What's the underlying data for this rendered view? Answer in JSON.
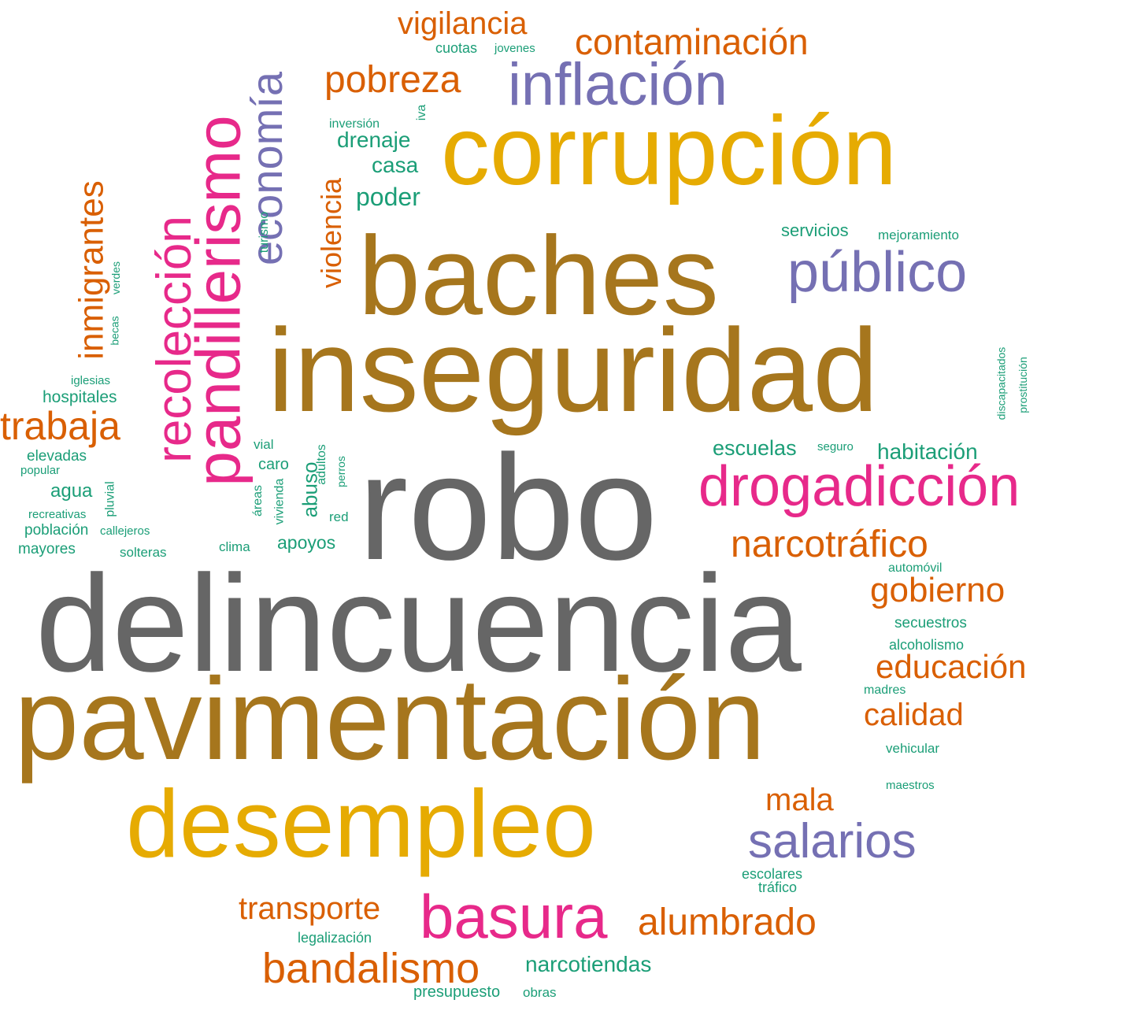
{
  "palette": {
    "gray": "#666666",
    "brown": "#A6761D",
    "gold": "#E6AB02",
    "purple": "#7570B3",
    "magenta": "#E7298A",
    "orange": "#D95F02",
    "green": "#1B9E77"
  },
  "words": [
    {
      "text": "robo",
      "color": "gray"
    },
    {
      "text": "delincuencia",
      "color": "gray"
    },
    {
      "text": "inseguridad",
      "color": "brown"
    },
    {
      "text": "pavimentación",
      "color": "brown"
    },
    {
      "text": "baches",
      "color": "brown"
    },
    {
      "text": "corrupción",
      "color": "gold"
    },
    {
      "text": "desempleo",
      "color": "gold"
    },
    {
      "text": "pandillerismo",
      "color": "magenta"
    },
    {
      "text": "drogadicción",
      "color": "magenta"
    },
    {
      "text": "basura",
      "color": "magenta"
    },
    {
      "text": "recolección",
      "color": "magenta"
    },
    {
      "text": "inflación",
      "color": "purple"
    },
    {
      "text": "economía",
      "color": "purple"
    },
    {
      "text": "público",
      "color": "purple"
    },
    {
      "text": "salarios",
      "color": "purple"
    },
    {
      "text": "contaminación",
      "color": "orange"
    },
    {
      "text": "pobreza",
      "color": "orange"
    },
    {
      "text": "vigilancia",
      "color": "orange"
    },
    {
      "text": "narcotráfico",
      "color": "orange"
    },
    {
      "text": "gobierno",
      "color": "orange"
    },
    {
      "text": "educación",
      "color": "orange"
    },
    {
      "text": "calidad",
      "color": "orange"
    },
    {
      "text": "mala",
      "color": "orange"
    },
    {
      "text": "alumbrado",
      "color": "orange"
    },
    {
      "text": "bandalismo",
      "color": "orange"
    },
    {
      "text": "transporte",
      "color": "orange"
    },
    {
      "text": "trabaja",
      "color": "orange"
    },
    {
      "text": "inmigrantes",
      "color": "orange"
    },
    {
      "text": "violencia",
      "color": "orange"
    },
    {
      "text": "drenaje",
      "color": "green"
    },
    {
      "text": "casa",
      "color": "green"
    },
    {
      "text": "poder",
      "color": "green"
    },
    {
      "text": "inversión",
      "color": "green"
    },
    {
      "text": "iva",
      "color": "green"
    },
    {
      "text": "cuotas",
      "color": "green"
    },
    {
      "text": "jovenes",
      "color": "green"
    },
    {
      "text": "servicios",
      "color": "green"
    },
    {
      "text": "mejoramiento",
      "color": "green"
    },
    {
      "text": "turismo",
      "color": "green"
    },
    {
      "text": "verdes",
      "color": "green"
    },
    {
      "text": "becas",
      "color": "green"
    },
    {
      "text": "iglesias",
      "color": "green"
    },
    {
      "text": "hospitales",
      "color": "green"
    },
    {
      "text": "elevadas",
      "color": "green"
    },
    {
      "text": "popular",
      "color": "green"
    },
    {
      "text": "agua",
      "color": "green"
    },
    {
      "text": "recreativas",
      "color": "green"
    },
    {
      "text": "población",
      "color": "green"
    },
    {
      "text": "callejeros",
      "color": "green"
    },
    {
      "text": "mayores",
      "color": "green"
    },
    {
      "text": "solteras",
      "color": "green"
    },
    {
      "text": "clima",
      "color": "green"
    },
    {
      "text": "pluvial",
      "color": "green"
    },
    {
      "text": "vial",
      "color": "green"
    },
    {
      "text": "caro",
      "color": "green"
    },
    {
      "text": "áreas",
      "color": "green"
    },
    {
      "text": "vivienda",
      "color": "green"
    },
    {
      "text": "abuso",
      "color": "green"
    },
    {
      "text": "adultos",
      "color": "green"
    },
    {
      "text": "perros",
      "color": "green"
    },
    {
      "text": "red",
      "color": "green"
    },
    {
      "text": "apoyos",
      "color": "green"
    },
    {
      "text": "escuelas",
      "color": "green"
    },
    {
      "text": "seguro",
      "color": "green"
    },
    {
      "text": "habitación",
      "color": "green"
    },
    {
      "text": "discapacitados",
      "color": "green"
    },
    {
      "text": "prostitución",
      "color": "green"
    },
    {
      "text": "automóvil",
      "color": "green"
    },
    {
      "text": "secuestros",
      "color": "green"
    },
    {
      "text": "alcoholismo",
      "color": "green"
    },
    {
      "text": "madres",
      "color": "green"
    },
    {
      "text": "vehicular",
      "color": "green"
    },
    {
      "text": "maestros",
      "color": "green"
    },
    {
      "text": "escolares",
      "color": "green"
    },
    {
      "text": "tráfico",
      "color": "green"
    },
    {
      "text": "legalización",
      "color": "green"
    },
    {
      "text": "narcotiendas",
      "color": "green"
    },
    {
      "text": "presupuesto",
      "color": "green"
    },
    {
      "text": "obras",
      "color": "green"
    }
  ]
}
